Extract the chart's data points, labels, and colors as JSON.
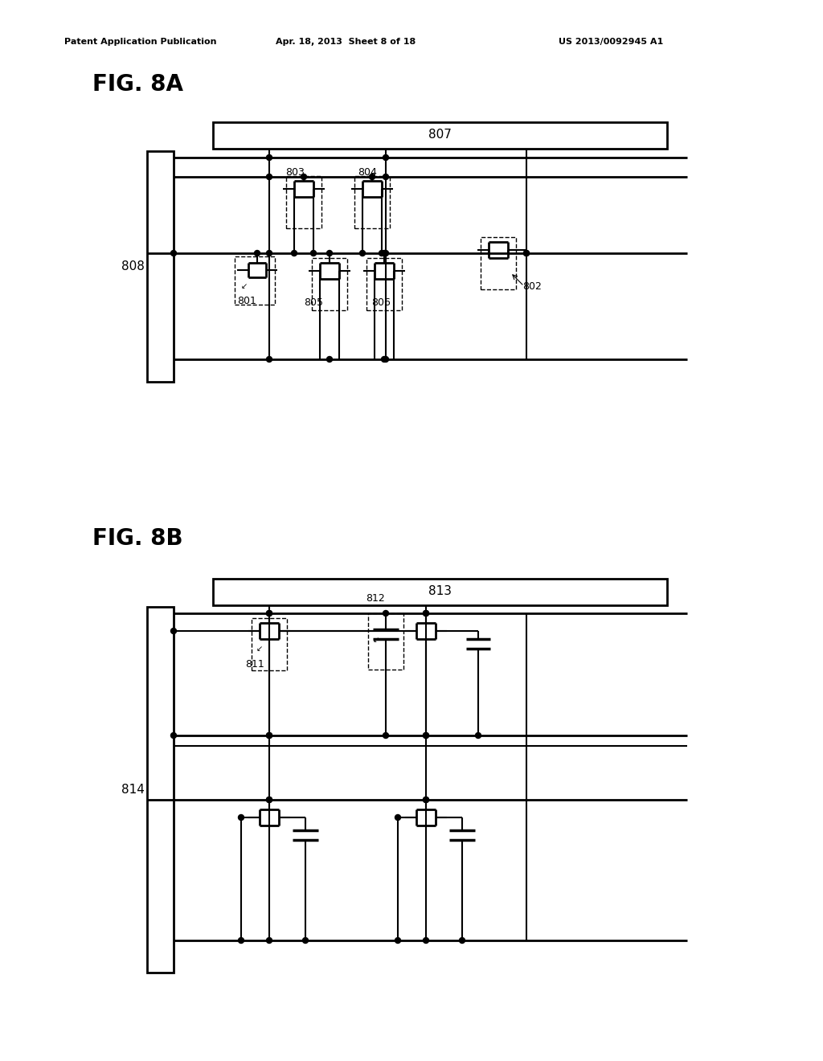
{
  "title_header": "Patent Application Publication",
  "date_header": "Apr. 18, 2013  Sheet 8 of 18",
  "patent_header": "US 2013/0092945 A1",
  "fig8a_label": "FIG. 8A",
  "fig8b_label": "FIG. 8B",
  "label_807": "807",
  "label_808": "808",
  "label_801": "801",
  "label_802": "802",
  "label_803": "803",
  "label_804": "804",
  "label_805": "805",
  "label_806": "806",
  "label_813": "813",
  "label_814": "814",
  "label_811": "811",
  "label_812": "812",
  "bg_color": "#ffffff",
  "line_color": "#000000"
}
